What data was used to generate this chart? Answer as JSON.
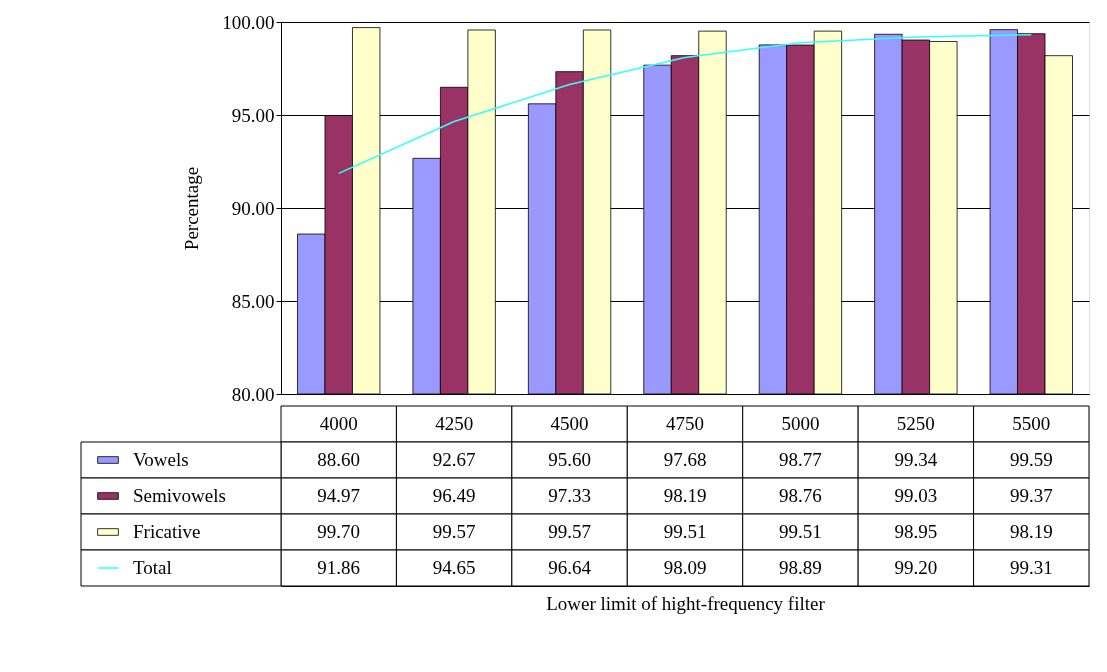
{
  "chart_data": {
    "type": "bar",
    "annotations": [
      "Lower limit of hight-frequency filter"
    ],
    "ylabel": "Percentage",
    "categories": [
      "4000",
      "4250",
      "4500",
      "4750",
      "5000",
      "5250",
      "5500"
    ],
    "series": [
      {
        "name": "Vowels",
        "color": "#9999ff",
        "values": [
          88.6,
          92.67,
          95.6,
          97.68,
          98.77,
          99.34,
          99.59
        ],
        "value_labels": [
          "88.60",
          "92.67",
          "95.60",
          "97.68",
          "98.77",
          "99.34",
          "99.59"
        ]
      },
      {
        "name": "Semivowels",
        "color": "#993366",
        "values": [
          94.97,
          96.49,
          97.33,
          98.19,
          98.76,
          99.03,
          99.37
        ],
        "value_labels": [
          "94.97",
          "96.49",
          "97.33",
          "98.19",
          "98.76",
          "99.03",
          "99.37"
        ]
      },
      {
        "name": "Fricative",
        "color": "#ffffcc",
        "values": [
          99.7,
          99.57,
          99.57,
          99.51,
          99.51,
          98.95,
          98.19
        ],
        "value_labels": [
          "99.70",
          "99.57",
          "99.57",
          "99.51",
          "99.51",
          "98.95",
          "98.19"
        ]
      },
      {
        "name": "Total",
        "type": "line",
        "color": "#33ffff",
        "values": [
          91.86,
          94.65,
          96.64,
          98.09,
          98.89,
          99.2,
          99.31
        ],
        "value_labels": [
          "91.86",
          "94.65",
          "96.64",
          "98.09",
          "98.89",
          "99.20",
          "99.31"
        ]
      }
    ],
    "ylim": [
      80,
      100
    ],
    "yticks": [
      {
        "value": 80,
        "label": "80.00"
      },
      {
        "value": 85,
        "label": "85.00"
      },
      {
        "value": 90,
        "label": "90.00"
      },
      {
        "value": 95,
        "label": "95.00"
      },
      {
        "value": 100,
        "label": "100.00"
      }
    ],
    "grid": "y",
    "legend": "bottom"
  }
}
